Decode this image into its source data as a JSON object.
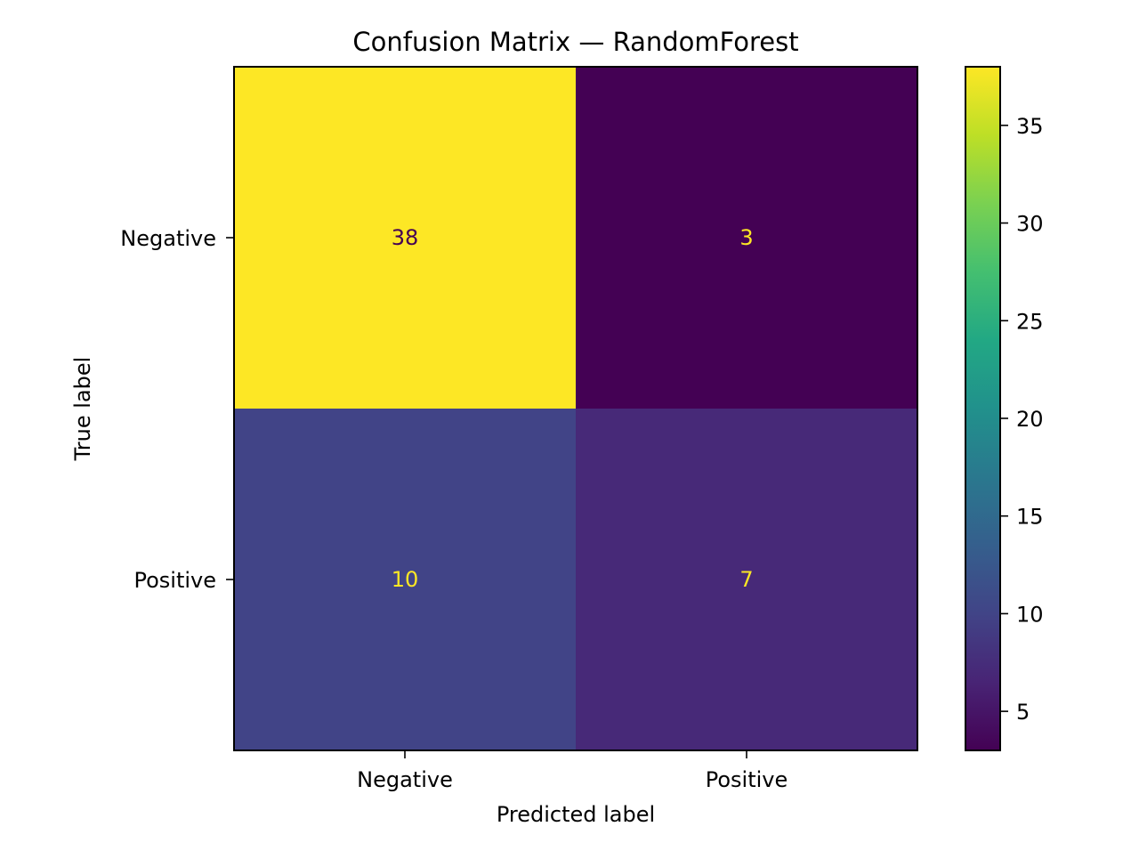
{
  "chart_data": {
    "type": "heatmap",
    "title": "Confusion Matrix — RandomForest",
    "xlabel": "Predicted label",
    "ylabel": "True label",
    "x_categories": [
      "Negative",
      "Positive"
    ],
    "y_categories": [
      "Negative",
      "Positive"
    ],
    "values": [
      [
        38,
        3
      ],
      [
        10,
        7
      ]
    ],
    "colormap": "viridis",
    "colorbar": {
      "range": [
        3,
        38
      ],
      "ticks": [
        5,
        10,
        15,
        20,
        25,
        30,
        35
      ]
    },
    "cell_text_colors": {
      "on_light": "#440154",
      "on_dark": "#fde725"
    },
    "grid": false
  }
}
